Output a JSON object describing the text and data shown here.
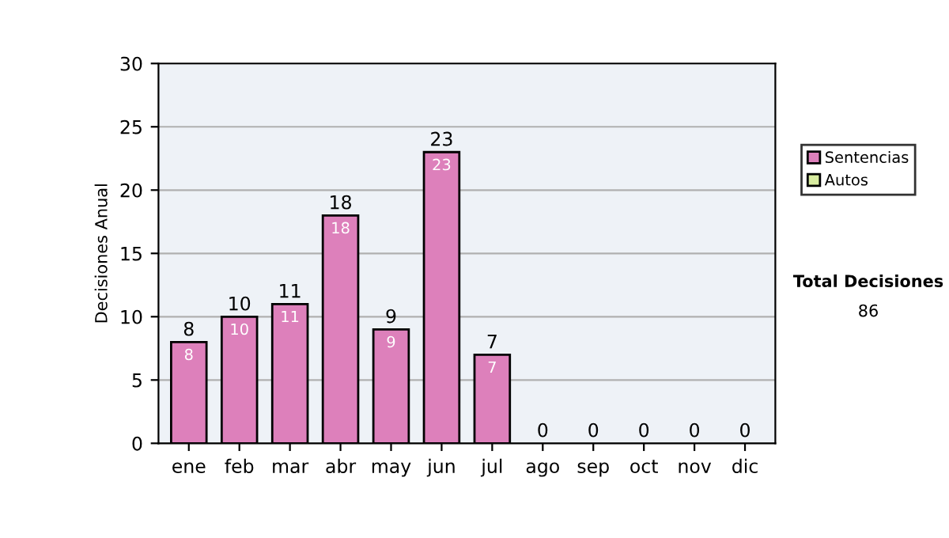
{
  "chart_data": {
    "type": "bar",
    "stacked": true,
    "categories": [
      "ene",
      "feb",
      "mar",
      "abr",
      "may",
      "jun",
      "jul",
      "ago",
      "sep",
      "oct",
      "nov",
      "dic"
    ],
    "series": [
      {
        "name": "Sentencias",
        "color": "#dd80bb",
        "values": [
          8,
          10,
          11,
          18,
          9,
          23,
          7,
          0,
          0,
          0,
          0,
          0
        ],
        "value_labels": [
          "8",
          "10",
          "11",
          "18",
          "9",
          "23",
          "7",
          null,
          null,
          null,
          null,
          null
        ]
      },
      {
        "name": "Autos",
        "color": "#d8eca0",
        "values": [
          0,
          0,
          0,
          0,
          0,
          0,
          0,
          0,
          0,
          0,
          0,
          0
        ]
      }
    ],
    "totals": [
      "8",
      "10",
      "11",
      "18",
      "9",
      "23",
      "7",
      "0",
      "0",
      "0",
      "0",
      "0"
    ],
    "ylabel": "Decisiones Anual",
    "ylim": [
      0,
      30
    ],
    "yticks": [
      0,
      5,
      10,
      15,
      20,
      25,
      30
    ],
    "grid": "y",
    "legend": "right",
    "annotations": [
      "Total Decisiones",
      "86"
    ]
  }
}
